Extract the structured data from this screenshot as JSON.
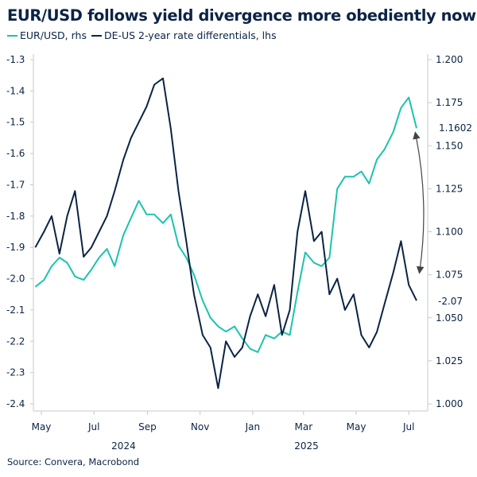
{
  "chart_data": {
    "type": "line",
    "title": "EUR/USD follows yield divergence more obediently now",
    "source": "Source: Convera, Macrobond",
    "x": [
      "2024-04-24",
      "2024-05-04",
      "2024-05-13",
      "2024-05-22",
      "2024-05-31",
      "2024-06-09",
      "2024-06-19",
      "2024-06-28",
      "2024-07-07",
      "2024-07-16",
      "2024-07-25",
      "2024-08-04",
      "2024-08-13",
      "2024-08-22",
      "2024-08-31",
      "2024-09-09",
      "2024-09-19",
      "2024-09-28",
      "2024-10-07",
      "2024-10-16",
      "2024-10-25",
      "2024-11-04",
      "2024-11-13",
      "2024-11-22",
      "2024-12-01",
      "2024-12-11",
      "2024-12-20",
      "2024-12-29",
      "2025-01-07",
      "2025-01-16",
      "2025-01-26",
      "2025-02-04",
      "2025-02-13",
      "2025-02-22",
      "2025-03-03",
      "2025-03-13",
      "2025-03-22",
      "2025-03-31",
      "2025-04-09",
      "2025-04-18",
      "2025-04-28",
      "2025-05-07",
      "2025-05-16",
      "2025-05-25",
      "2025-06-03",
      "2025-06-13",
      "2025-06-22",
      "2025-07-01",
      "2025-07-10"
    ],
    "series": [
      {
        "name": "EUR/USD, rhs",
        "axis": "right",
        "color": "#1cc3ad",
        "values": [
          1.068,
          1.072,
          1.08,
          1.085,
          1.082,
          1.074,
          1.072,
          1.078,
          1.085,
          1.09,
          1.08,
          1.098,
          1.108,
          1.118,
          1.11,
          1.11,
          1.105,
          1.11,
          1.092,
          1.085,
          1.075,
          1.06,
          1.05,
          1.045,
          1.042,
          1.045,
          1.038,
          1.032,
          1.03,
          1.04,
          1.038,
          1.042,
          1.04,
          1.065,
          1.088,
          1.082,
          1.08,
          1.085,
          1.125,
          1.132,
          1.132,
          1.135,
          1.128,
          1.142,
          1.148,
          1.158,
          1.172,
          1.178,
          1.1602
        ],
        "end_label": "1.1602"
      },
      {
        "name": "DE-US 2-year rate differentials, lhs",
        "axis": "left",
        "color": "#0b2345",
        "values": [
          -1.9,
          -1.85,
          -1.8,
          -1.92,
          -1.8,
          -1.72,
          -1.93,
          -1.9,
          -1.85,
          -1.8,
          -1.72,
          -1.62,
          -1.55,
          -1.5,
          -1.45,
          -1.38,
          -1.36,
          -1.52,
          -1.72,
          -1.88,
          -2.05,
          -2.18,
          -2.22,
          -2.35,
          -2.2,
          -2.25,
          -2.22,
          -2.12,
          -2.05,
          -2.12,
          -2.02,
          -2.18,
          -2.1,
          -1.85,
          -1.72,
          -1.88,
          -1.85,
          -2.05,
          -2.0,
          -2.1,
          -2.05,
          -2.18,
          -2.22,
          -2.17,
          -2.08,
          -1.98,
          -1.88,
          -2.02,
          -2.07
        ],
        "end_label": "-2.07"
      }
    ],
    "y_left": {
      "range": [
        -2.4,
        -1.3
      ],
      "ticks": [
        "-1.3",
        "-1.4",
        "-1.5",
        "-1.6",
        "-1.7",
        "-1.8",
        "-1.9",
        "-2.0",
        "-2.1",
        "-2.2",
        "-2.3",
        "-2.4"
      ]
    },
    "y_right": {
      "range": [
        1.0,
        1.2
      ],
      "ticks": [
        "1.200",
        "1.175",
        "1.150",
        "1.125",
        "1.100",
        "1.075",
        "1.050",
        "1.025",
        "1.000"
      ]
    },
    "x_ticks": [
      {
        "label": "May",
        "date": "2024-05-01"
      },
      {
        "label": "Jul",
        "date": "2024-07-01"
      },
      {
        "label": "Sep",
        "date": "2024-09-01"
      },
      {
        "label": "Nov",
        "date": "2024-11-01"
      },
      {
        "label": "Jan",
        "date": "2025-01-01"
      },
      {
        "label": "Mar",
        "date": "2025-03-01"
      },
      {
        "label": "May",
        "date": "2025-05-01"
      },
      {
        "label": "Jul",
        "date": "2025-07-01"
      }
    ],
    "year_labels": [
      {
        "label": "2024",
        "date": "2024-09-01"
      },
      {
        "label": "2025",
        "date": "2025-04-01"
      }
    ],
    "grid": false,
    "legend": "top-left",
    "annotation": "double-headed arrow linking series end points"
  }
}
